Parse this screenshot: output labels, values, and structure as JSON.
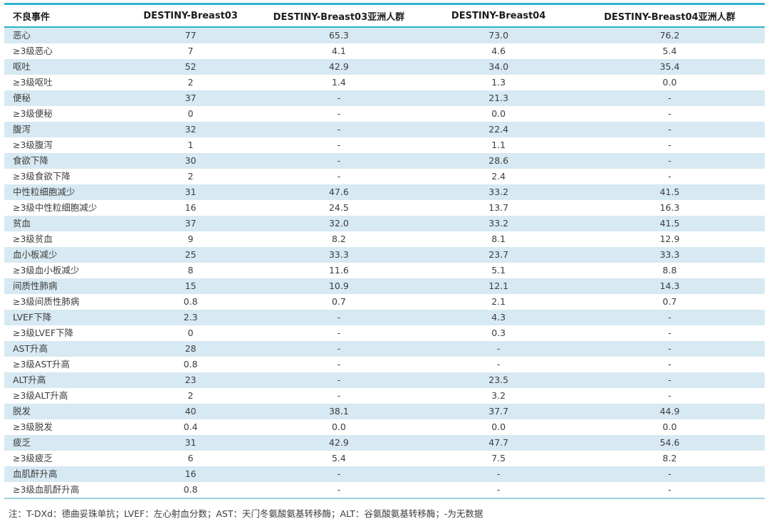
{
  "table": {
    "columns": [
      "不良事件",
      "DESTINY-Breast03",
      "DESTINY-Breast03亚洲人群",
      "DESTINY-Breast04",
      "DESTINY-Breast04亚洲人群"
    ],
    "rows": [
      {
        "label": "恶心",
        "values": [
          "77",
          "65.3",
          "73.0",
          "76.2"
        ]
      },
      {
        "label": "≥3级恶心",
        "values": [
          "7",
          "4.1",
          "4.6",
          "5.4"
        ]
      },
      {
        "label": "呕吐",
        "values": [
          "52",
          "42.9",
          "34.0",
          "35.4"
        ]
      },
      {
        "label": "≥3级呕吐",
        "values": [
          "2",
          "1.4",
          "1.3",
          "0.0"
        ]
      },
      {
        "label": "便秘",
        "values": [
          "37",
          "-",
          "21.3",
          "-"
        ]
      },
      {
        "label": "≥3级便秘",
        "values": [
          "0",
          "-",
          "0.0",
          "-"
        ]
      },
      {
        "label": "腹泻",
        "values": [
          "32",
          "-",
          "22.4",
          "-"
        ]
      },
      {
        "label": "≥3级腹泻",
        "values": [
          "1",
          "-",
          "1.1",
          "-"
        ]
      },
      {
        "label": "食欲下降",
        "values": [
          "30",
          "-",
          "28.6",
          "-"
        ]
      },
      {
        "label": "≥3级食欲下降",
        "values": [
          "2",
          "-",
          "2.4",
          "-"
        ]
      },
      {
        "label": "中性粒细胞减少",
        "values": [
          "31",
          "47.6",
          "33.2",
          "41.5"
        ]
      },
      {
        "label": "≥3级中性粒细胞减少",
        "values": [
          "16",
          "24.5",
          "13.7",
          "16.3"
        ]
      },
      {
        "label": "贫血",
        "values": [
          "37",
          "32.0",
          "33.2",
          "41.5"
        ]
      },
      {
        "label": "≥3级贫血",
        "values": [
          "9",
          "8.2",
          "8.1",
          "12.9"
        ]
      },
      {
        "label": "血小板减少",
        "values": [
          "25",
          "33.3",
          "23.7",
          "33.3"
        ]
      },
      {
        "label": "≥3级血小板减少",
        "values": [
          "8",
          "11.6",
          "5.1",
          "8.8"
        ]
      },
      {
        "label": "间质性肺病",
        "values": [
          "15",
          "10.9",
          "12.1",
          "14.3"
        ]
      },
      {
        "label": "≥3级间质性肺病",
        "values": [
          "0.8",
          "0.7",
          "2.1",
          "0.7"
        ]
      },
      {
        "label": "LVEF下降",
        "values": [
          "2.3",
          "-",
          "4.3",
          "-"
        ]
      },
      {
        "label": "≥3级LVEF下降",
        "values": [
          "0",
          "-",
          "0.3",
          "-"
        ]
      },
      {
        "label": "AST升高",
        "values": [
          "28",
          "-",
          "-",
          "-"
        ]
      },
      {
        "label": "≥3级AST升高",
        "values": [
          "0.8",
          "-",
          "-",
          "-"
        ]
      },
      {
        "label": "ALT升高",
        "values": [
          "23",
          "-",
          "23.5",
          "-"
        ]
      },
      {
        "label": "≥3级ALT升高",
        "values": [
          "2",
          "-",
          "3.2",
          "-"
        ]
      },
      {
        "label": "脱发",
        "values": [
          "40",
          "38.1",
          "37.7",
          "44.9"
        ]
      },
      {
        "label": "≥3级脱发",
        "values": [
          "0.4",
          "0.0",
          "0.0",
          "0.0"
        ]
      },
      {
        "label": "疲乏",
        "values": [
          "31",
          "42.9",
          "47.7",
          "54.6"
        ]
      },
      {
        "label": "≥3级疲乏",
        "values": [
          "6",
          "5.4",
          "7.5",
          "8.2"
        ]
      },
      {
        "label": "血肌酐升高",
        "values": [
          "16",
          "-",
          "-",
          "-"
        ]
      },
      {
        "label": "≥3级血肌酐升高",
        "values": [
          "0.8",
          "-",
          "-",
          "-"
        ]
      }
    ]
  },
  "footnote": "注：T-DXd：德曲妥珠单抗；LVEF：左心射血分数；AST：天门冬氨酸氨基转移酶；ALT：谷氨酸氨基转移酶；-为无数据",
  "colors": {
    "accent_teal": "#2bb3cc",
    "row_stripe": "#d7e9f2",
    "divider_blue": "#9ccfdf",
    "text": "#3d3d3d",
    "header_text": "#1c1c1c"
  }
}
